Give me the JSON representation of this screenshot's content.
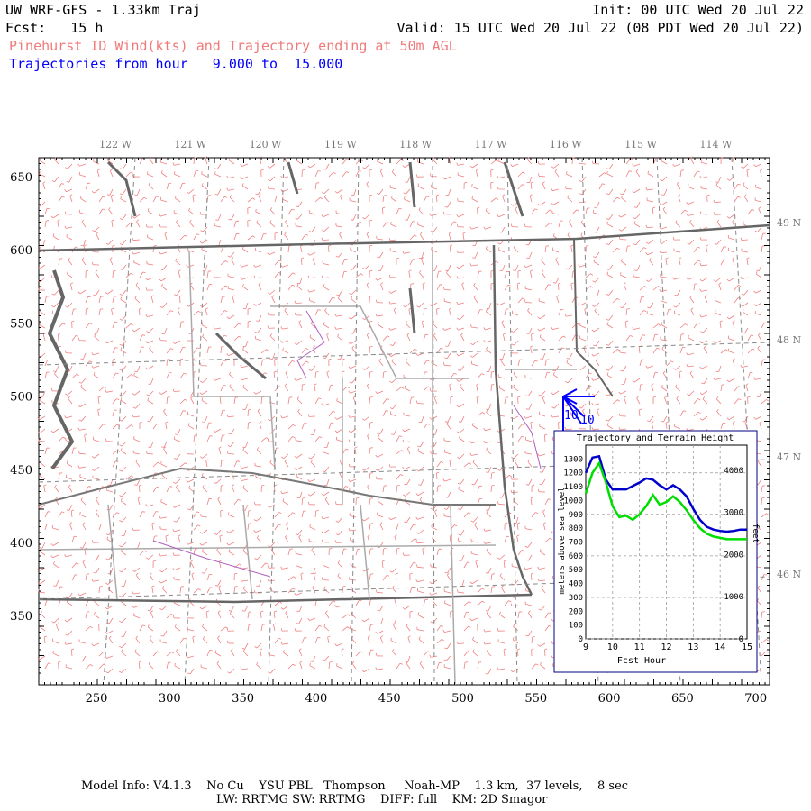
{
  "header": {
    "title": "UW WRF-GFS - 1.33km Traj",
    "init": "Init: 00 UTC Wed 20 Jul 22",
    "fcst": "Fcst:   15 h",
    "valid": "Valid: 15 UTC Wed 20 Jul 22 (08 PDT Wed 20 Jul 22)",
    "subtitle": "Pinehurst ID Wind(kts) and Trajectory ending at 50m AGL",
    "traj_range": "Trajectories from hour   9.000 to  15.000"
  },
  "map": {
    "x_ticks": [
      "250",
      "300",
      "350",
      "400",
      "450",
      "500",
      "550",
      "600",
      "650",
      "700"
    ],
    "y_ticks": [
      "650",
      "600",
      "550",
      "500",
      "450",
      "400",
      "350"
    ],
    "lon_labels": [
      "122 W",
      "121 W",
      "120 W",
      "119 W",
      "118 W",
      "117 W",
      "116 W",
      "115 W",
      "114 W"
    ],
    "lat_labels": [
      "49 N",
      "48 N",
      "47 N",
      "46 N"
    ],
    "traj_labels": [
      "10",
      "10"
    ],
    "colors": {
      "barbs": "#f08080",
      "coast": "#666666",
      "county": "#aaaaaa",
      "river": "#b060c0",
      "traj": "#0000ff"
    }
  },
  "chart_data": {
    "type": "line",
    "title": "Trajectory and Terrain Height",
    "xlabel": "Fcst Hour",
    "ylabel": "meters above sea level",
    "y2label": "feet",
    "xlim": [
      9,
      15
    ],
    "ylim": [
      0,
      1400
    ],
    "x_ticks": [
      "9",
      "10",
      "11",
      "12",
      "13",
      "14",
      "15"
    ],
    "y_ticks": [
      "0",
      "100",
      "200",
      "300",
      "400",
      "500",
      "600",
      "700",
      "800",
      "900",
      "1000",
      "1100",
      "1200",
      "1300"
    ],
    "y2_ticks": [
      "0",
      "1000",
      "2000",
      "3000",
      "4000"
    ],
    "series": [
      {
        "color": "#0000cc",
        "x": [
          9.0,
          9.25,
          9.5,
          9.75,
          10.0,
          10.5,
          11.0,
          11.25,
          11.5,
          11.75,
          12.0,
          12.25,
          12.5,
          12.75,
          13.0,
          13.25,
          13.5,
          13.75,
          14.0,
          14.25,
          14.5,
          14.75,
          15.0
        ],
        "y": [
          1200,
          1310,
          1320,
          1150,
          1080,
          1080,
          1130,
          1160,
          1150,
          1110,
          1080,
          1110,
          1080,
          1030,
          940,
          860,
          810,
          790,
          780,
          775,
          780,
          790,
          790
        ]
      },
      {
        "color": "#00dd00",
        "x": [
          9.0,
          9.25,
          9.5,
          9.75,
          10.0,
          10.25,
          10.5,
          10.75,
          11.0,
          11.25,
          11.5,
          11.75,
          12.0,
          12.25,
          12.5,
          12.75,
          13.0,
          13.25,
          13.5,
          13.75,
          14.0,
          14.25,
          14.5,
          14.75,
          15.0
        ],
        "y": [
          1050,
          1200,
          1270,
          1130,
          960,
          880,
          890,
          860,
          900,
          960,
          1040,
          970,
          990,
          1030,
          990,
          930,
          860,
          800,
          760,
          740,
          730,
          720,
          720,
          720,
          720
        ]
      }
    ]
  },
  "footer": {
    "line1": "Model Info: V4.1.3    No Cu    YSU PBL   Thompson     Noah-MP    1.3 km,  37 levels,    8 sec",
    "line2": "LW: RRTMG SW: RRTMG    DIFF: full    KM: 2D Smagor"
  }
}
